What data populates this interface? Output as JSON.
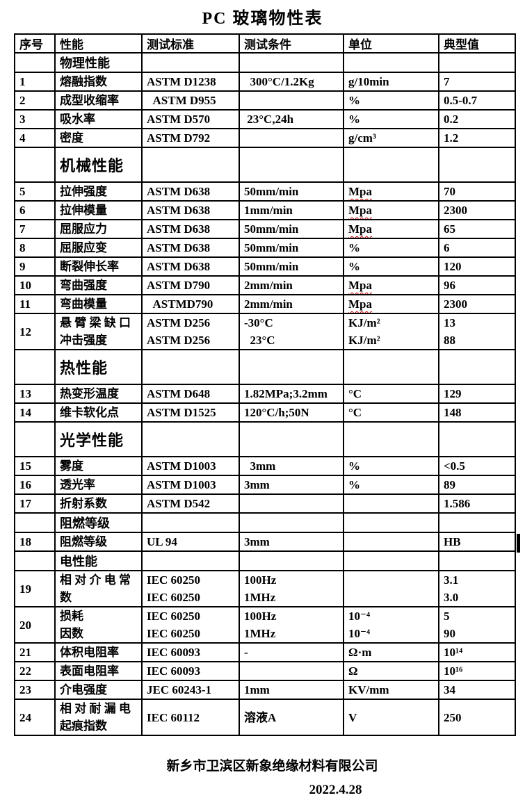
{
  "title": "PC 玻璃物性表",
  "table": {
    "headers": [
      "序号",
      "性能",
      "测试标准",
      "测试条件",
      "单位",
      "典型值"
    ],
    "rows": [
      {
        "type": "section",
        "size": "normal",
        "label": "物理性能"
      },
      {
        "type": "data",
        "no": "1",
        "property": [
          "熔融指数"
        ],
        "standard": [
          "ASTM D1238"
        ],
        "condition": [
          "  300°C/1.2Kg"
        ],
        "unit": [
          "g/10min"
        ],
        "value": [
          "7"
        ]
      },
      {
        "type": "data",
        "no": "2",
        "property": [
          "成型收缩率"
        ],
        "standard": [
          "  ASTM D955"
        ],
        "condition": [
          ""
        ],
        "unit": [
          "%"
        ],
        "value": [
          "0.5-0.7"
        ]
      },
      {
        "type": "data",
        "no": "3",
        "property": [
          "吸水率"
        ],
        "standard": [
          "ASTM D570"
        ],
        "condition": [
          " 23°C,24h"
        ],
        "unit": [
          "%"
        ],
        "value": [
          "0.2"
        ]
      },
      {
        "type": "data",
        "no": "4",
        "property": [
          "密度"
        ],
        "standard": [
          "ASTM D792"
        ],
        "condition": [
          ""
        ],
        "unit": [
          "g/cm³"
        ],
        "value": [
          "1.2"
        ]
      },
      {
        "type": "section",
        "size": "large",
        "label": "机械性能"
      },
      {
        "type": "data",
        "no": "5",
        "property": [
          "拉伸强度"
        ],
        "standard": [
          "ASTM D638"
        ],
        "condition": [
          "50mm/min"
        ],
        "unit": [
          "Mpa"
        ],
        "value": [
          "70"
        ]
      },
      {
        "type": "data",
        "no": "6",
        "property": [
          "拉伸模量"
        ],
        "standard": [
          "ASTM D638"
        ],
        "condition": [
          "1mm/min"
        ],
        "unit": [
          "Mpa"
        ],
        "value": [
          "2300"
        ]
      },
      {
        "type": "data",
        "no": "7",
        "property": [
          "屈服应力"
        ],
        "standard": [
          "ASTM D638"
        ],
        "condition": [
          "50mm/min"
        ],
        "unit": [
          "Mpa"
        ],
        "value": [
          "65"
        ]
      },
      {
        "type": "data",
        "no": "8",
        "property": [
          "屈服应变"
        ],
        "standard": [
          "ASTM D638"
        ],
        "condition": [
          "50mm/min"
        ],
        "unit": [
          "%"
        ],
        "value": [
          "6"
        ]
      },
      {
        "type": "data",
        "no": "9",
        "property": [
          "断裂伸长率"
        ],
        "standard": [
          "ASTM D638"
        ],
        "condition": [
          "50mm/min"
        ],
        "unit": [
          "%"
        ],
        "value": [
          "120"
        ]
      },
      {
        "type": "data",
        "no": "10",
        "property": [
          "弯曲强度"
        ],
        "standard": [
          "ASTM D790"
        ],
        "condition": [
          "2mm/min"
        ],
        "unit": [
          "Mpa"
        ],
        "value": [
          "96"
        ]
      },
      {
        "type": "data",
        "no": "11",
        "property": [
          "弯曲模量"
        ],
        "standard": [
          "  ASTMD790"
        ],
        "condition": [
          "2mm/min"
        ],
        "unit": [
          "Mpa"
        ],
        "value": [
          "2300"
        ]
      },
      {
        "type": "data",
        "no": "12",
        "property": [
          "悬 臂 梁 缺 口",
          "冲击强度"
        ],
        "standard": [
          "ASTM D256",
          "ASTM D256"
        ],
        "condition": [
          "-30°C",
          "  23°C"
        ],
        "unit": [
          "KJ/m²",
          "KJ/m²"
        ],
        "value": [
          "13",
          "88"
        ]
      },
      {
        "type": "section",
        "size": "large",
        "label": "热性能"
      },
      {
        "type": "data",
        "no": "13",
        "property": [
          "热变形温度"
        ],
        "standard": [
          "ASTM D648"
        ],
        "condition": [
          "1.82MPa;3.2mm"
        ],
        "unit": [
          "°C"
        ],
        "value": [
          "129"
        ]
      },
      {
        "type": "data",
        "no": "14",
        "property": [
          "维卡软化点"
        ],
        "standard": [
          "ASTM D1525"
        ],
        "condition": [
          "120°C/h;50N"
        ],
        "unit": [
          "°C"
        ],
        "value": [
          "148"
        ]
      },
      {
        "type": "section",
        "size": "large",
        "label": "光学性能"
      },
      {
        "type": "data",
        "no": "15",
        "property": [
          "雾度"
        ],
        "standard": [
          "ASTM D1003"
        ],
        "condition": [
          "  3mm"
        ],
        "unit": [
          "%"
        ],
        "value": [
          "<0.5"
        ]
      },
      {
        "type": "data",
        "no": "16",
        "property": [
          "透光率"
        ],
        "standard": [
          "ASTM D1003"
        ],
        "condition": [
          "3mm"
        ],
        "unit": [
          "%"
        ],
        "value": [
          "89"
        ]
      },
      {
        "type": "data",
        "no": "17",
        "property": [
          "折射系数"
        ],
        "standard": [
          "ASTM D542"
        ],
        "condition": [
          ""
        ],
        "unit": [
          ""
        ],
        "value": [
          "1.586"
        ]
      },
      {
        "type": "section",
        "size": "normal",
        "label": "阻燃等级"
      },
      {
        "type": "data",
        "no": "18",
        "property": [
          "阻燃等级"
        ],
        "standard": [
          "UL 94"
        ],
        "condition": [
          "3mm"
        ],
        "unit": [
          ""
        ],
        "value": [
          "HB"
        ]
      },
      {
        "type": "section",
        "size": "normal",
        "label": "电性能"
      },
      {
        "type": "data",
        "no": "19",
        "property": [
          "相 对 介 电 常",
          "数"
        ],
        "standard": [
          "IEC 60250",
          "IEC 60250"
        ],
        "condition": [
          "100Hz",
          "1MHz"
        ],
        "unit": [
          "",
          ""
        ],
        "value": [
          "3.1",
          "3.0"
        ]
      },
      {
        "type": "data",
        "no": "20",
        "property": [
          "损耗",
          "因数"
        ],
        "standard": [
          "IEC 60250",
          "IEC 60250"
        ],
        "condition": [
          "100Hz",
          "1MHz"
        ],
        "unit": [
          "10⁻⁴",
          "10⁻⁴"
        ],
        "value": [
          "5",
          "90"
        ]
      },
      {
        "type": "data",
        "no": "21",
        "property": [
          "体积电阻率"
        ],
        "standard": [
          "IEC 60093"
        ],
        "condition": [
          "-"
        ],
        "unit": [
          "Ω·m"
        ],
        "value": [
          "10¹⁴"
        ]
      },
      {
        "type": "data",
        "no": "22",
        "property": [
          "表面电阻率"
        ],
        "standard": [
          "IEC 60093"
        ],
        "condition": [
          ""
        ],
        "unit": [
          "Ω"
        ],
        "value": [
          "10¹⁶"
        ]
      },
      {
        "type": "data",
        "no": "23",
        "property": [
          "介电强度"
        ],
        "standard": [
          "JEC 60243-1"
        ],
        "condition": [
          "1mm"
        ],
        "unit": [
          "KV/mm"
        ],
        "value": [
          "34"
        ]
      },
      {
        "type": "data",
        "no": "24",
        "property": [
          "相 对 耐 漏 电",
          "起痕指数"
        ],
        "standard": [
          "IEC 60112"
        ],
        "condition": [
          "溶液A"
        ],
        "unit": [
          "V"
        ],
        "value": [
          "250"
        ]
      }
    ]
  },
  "footer": {
    "company": "新乡市卫滨区新象绝缘材料有限公司",
    "date": "2022.4.28"
  },
  "colors": {
    "text": "#000000",
    "border": "#000000",
    "background": "#ffffff",
    "spellcheck_underline": "#cc0000"
  }
}
